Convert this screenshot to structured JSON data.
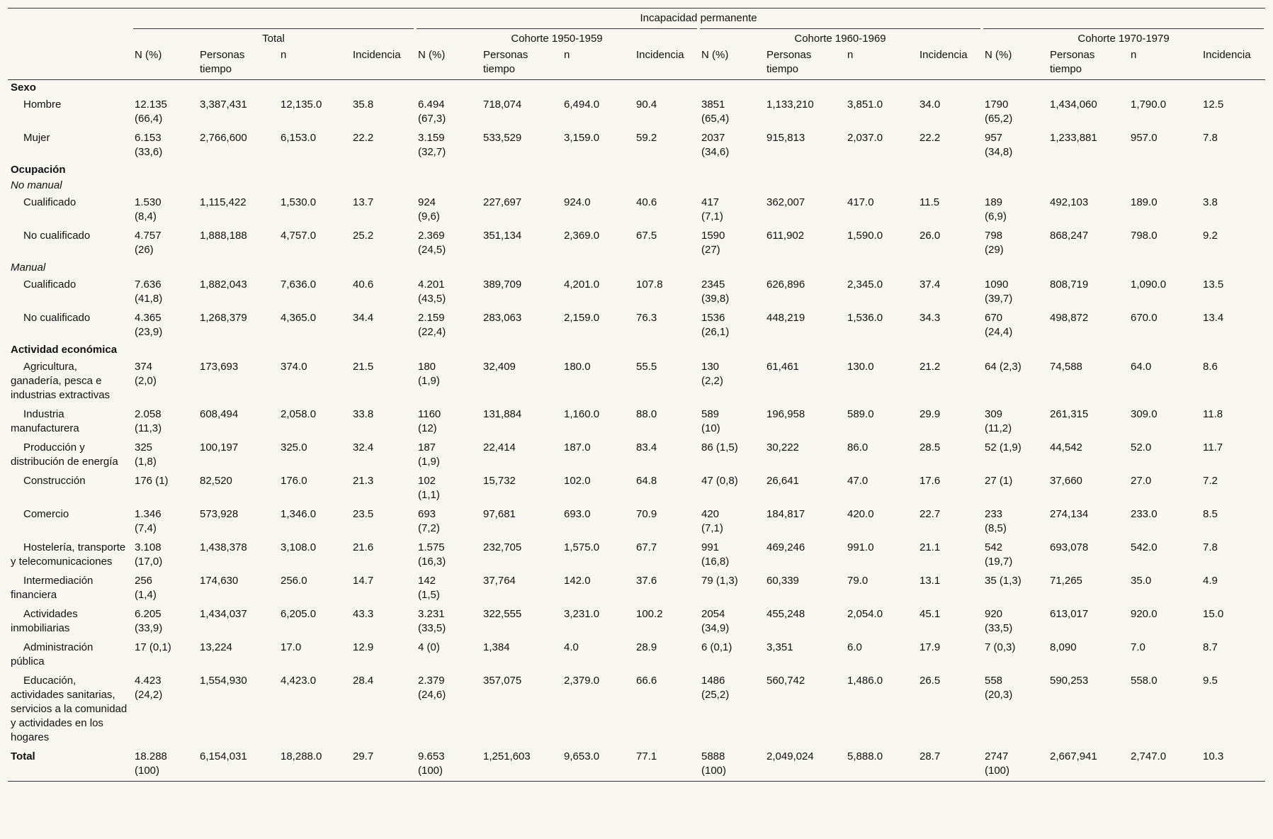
{
  "table": {
    "header": {
      "title": "Incapacidad permanente",
      "groups": [
        "Total",
        "Cohorte 1950-1959",
        "Cohorte 1960-1969",
        "Cohorte 1970-1979"
      ],
      "columns": [
        "N (%)",
        "Personas tiempo",
        "n",
        "Incidencia"
      ]
    },
    "rows": [
      {
        "kind": "section",
        "label": "Sexo"
      },
      {
        "kind": "item",
        "label": "Hombre",
        "cells": [
          "12.135 (66,4)",
          "3,387,431",
          "12,135.0",
          "35.8",
          "6.494 (67,3)",
          "718,074",
          "6,494.0",
          "90.4",
          "3851 (65,4)",
          "1,133,210",
          "3,851.0",
          "34.0",
          "1790 (65,2)",
          "1,434,060",
          "1,790.0",
          "12.5"
        ]
      },
      {
        "kind": "item",
        "label": "Mujer",
        "cells": [
          "6.153 (33,6)",
          "2,766,600",
          "6,153.0",
          "22.2",
          "3.159 (32,7)",
          "533,529",
          "3,159.0",
          "59.2",
          "2037 (34,6)",
          "915,813",
          "2,037.0",
          "22.2",
          "957 (34,8)",
          "1,233,881",
          "957.0",
          "7.8"
        ]
      },
      {
        "kind": "section",
        "label": "Ocupación"
      },
      {
        "kind": "subsection",
        "label": "No manual"
      },
      {
        "kind": "item",
        "label": "Cualificado",
        "cells": [
          "1.530 (8,4)",
          "1,115,422",
          "1,530.0",
          "13.7",
          "924 (9,6)",
          "227,697",
          "924.0",
          "40.6",
          "417 (7,1)",
          "362,007",
          "417.0",
          "11.5",
          "189 (6,9)",
          "492,103",
          "189.0",
          "3.8"
        ]
      },
      {
        "kind": "item",
        "label": "No cualificado",
        "cells": [
          "4.757 (26)",
          "1,888,188",
          "4,757.0",
          "25.2",
          "2.369 (24,5)",
          "351,134",
          "2,369.0",
          "67.5",
          "1590 (27)",
          "611,902",
          "1,590.0",
          "26.0",
          "798 (29)",
          "868,247",
          "798.0",
          "9.2"
        ]
      },
      {
        "kind": "subsection",
        "label": "Manual"
      },
      {
        "kind": "item",
        "label": "Cualificado",
        "cells": [
          "7.636 (41,8)",
          "1,882,043",
          "7,636.0",
          "40.6",
          "4.201 (43,5)",
          "389,709",
          "4,201.0",
          "107.8",
          "2345 (39,8)",
          "626,896",
          "2,345.0",
          "37.4",
          "1090 (39,7)",
          "808,719",
          "1,090.0",
          "13.5"
        ]
      },
      {
        "kind": "item",
        "label": "No cualificado",
        "cells": [
          "4.365 (23,9)",
          "1,268,379",
          "4,365.0",
          "34.4",
          "2.159 (22,4)",
          "283,063",
          "2,159.0",
          "76.3",
          "1536 (26,1)",
          "448,219",
          "1,536.0",
          "34.3",
          "670 (24,4)",
          "498,872",
          "670.0",
          "13.4"
        ]
      },
      {
        "kind": "section",
        "label": "Actividad económica"
      },
      {
        "kind": "item",
        "label": "Agricultura, ganadería, pesca e industrias extractivas",
        "cells": [
          "374 (2,0)",
          "173,693",
          "374.0",
          "21.5",
          "180 (1,9)",
          "32,409",
          "180.0",
          "55.5",
          "130 (2,2)",
          "61,461",
          "130.0",
          "21.2",
          "64 (2,3)",
          "74,588",
          "64.0",
          "8.6"
        ]
      },
      {
        "kind": "item",
        "label": "Industria manufacturera",
        "cells": [
          "2.058 (11,3)",
          "608,494",
          "2,058.0",
          "33.8",
          "1160 (12)",
          "131,884",
          "1,160.0",
          "88.0",
          "589 (10)",
          "196,958",
          "589.0",
          "29.9",
          "309 (11,2)",
          "261,315",
          "309.0",
          "11.8"
        ]
      },
      {
        "kind": "item",
        "label": "Producción y distribución de energía",
        "cells": [
          "325 (1,8)",
          "100,197",
          "325.0",
          "32.4",
          "187 (1,9)",
          "22,414",
          "187.0",
          "83.4",
          "86 (1,5)",
          "30,222",
          "86.0",
          "28.5",
          "52 (1,9)",
          "44,542",
          "52.0",
          "11.7"
        ]
      },
      {
        "kind": "item",
        "label": "Construcción",
        "cells": [
          "176 (1)",
          "82,520",
          "176.0",
          "21.3",
          "102 (1,1)",
          "15,732",
          "102.0",
          "64.8",
          "47 (0,8)",
          "26,641",
          "47.0",
          "17.6",
          "27 (1)",
          "37,660",
          "27.0",
          "7.2"
        ]
      },
      {
        "kind": "item",
        "label": "Comercio",
        "cells": [
          "1.346 (7,4)",
          "573,928",
          "1,346.0",
          "23.5",
          "693 (7,2)",
          "97,681",
          "693.0",
          "70.9",
          "420 (7,1)",
          "184,817",
          "420.0",
          "22.7",
          "233 (8,5)",
          "274,134",
          "233.0",
          "8.5"
        ]
      },
      {
        "kind": "item",
        "label": "Hostelería, transporte y telecomunicaciones",
        "cells": [
          "3.108 (17,0)",
          "1,438,378",
          "3,108.0",
          "21.6",
          "1.575 (16,3)",
          "232,705",
          "1,575.0",
          "67.7",
          "991 (16,8)",
          "469,246",
          "991.0",
          "21.1",
          "542 (19,7)",
          "693,078",
          "542.0",
          "7.8"
        ]
      },
      {
        "kind": "item",
        "label": "Intermediación financiera",
        "cells": [
          "256 (1,4)",
          "174,630",
          "256.0",
          "14.7",
          "142 (1,5)",
          "37,764",
          "142.0",
          "37.6",
          "79 (1,3)",
          "60,339",
          "79.0",
          "13.1",
          "35 (1,3)",
          "71,265",
          "35.0",
          "4.9"
        ]
      },
      {
        "kind": "item",
        "label": "Actividades inmobiliarias",
        "cells": [
          "6.205 (33,9)",
          "1,434,037",
          "6,205.0",
          "43.3",
          "3.231 (33,5)",
          "322,555",
          "3,231.0",
          "100.2",
          "2054 (34,9)",
          "455,248",
          "2,054.0",
          "45.1",
          "920 (33,5)",
          "613,017",
          "920.0",
          "15.0"
        ]
      },
      {
        "kind": "item",
        "label": "Administración pública",
        "cells": [
          "17 (0,1)",
          "13,224",
          "17.0",
          "12.9",
          "4 (0)",
          "1,384",
          "4.0",
          "28.9",
          "6 (0,1)",
          "3,351",
          "6.0",
          "17.9",
          "7 (0,3)",
          "8,090",
          "7.0",
          "8.7"
        ]
      },
      {
        "kind": "item",
        "label": "Educación, actividades sanitarias, servicios a la comunidad y actividades en los hogares",
        "cells": [
          "4.423 (24,2)",
          "1,554,930",
          "4,423.0",
          "28.4",
          "2.379 (24,6)",
          "357,075",
          "2,379.0",
          "66.6",
          "1486 (25,2)",
          "560,742",
          "1,486.0",
          "26.5",
          "558 (20,3)",
          "590,253",
          "558.0",
          "9.5"
        ]
      },
      {
        "kind": "total",
        "label": "Total",
        "cells": [
          "18.288 (100)",
          "6,154,031",
          "18,288.0",
          "29.7",
          "9.653 (100)",
          "1,251,603",
          "9,653.0",
          "77.1",
          "5888 (100)",
          "2,049,024",
          "5,888.0",
          "28.7",
          "2747 (100)",
          "2,667,941",
          "2,747.0",
          "10.3"
        ]
      }
    ]
  }
}
